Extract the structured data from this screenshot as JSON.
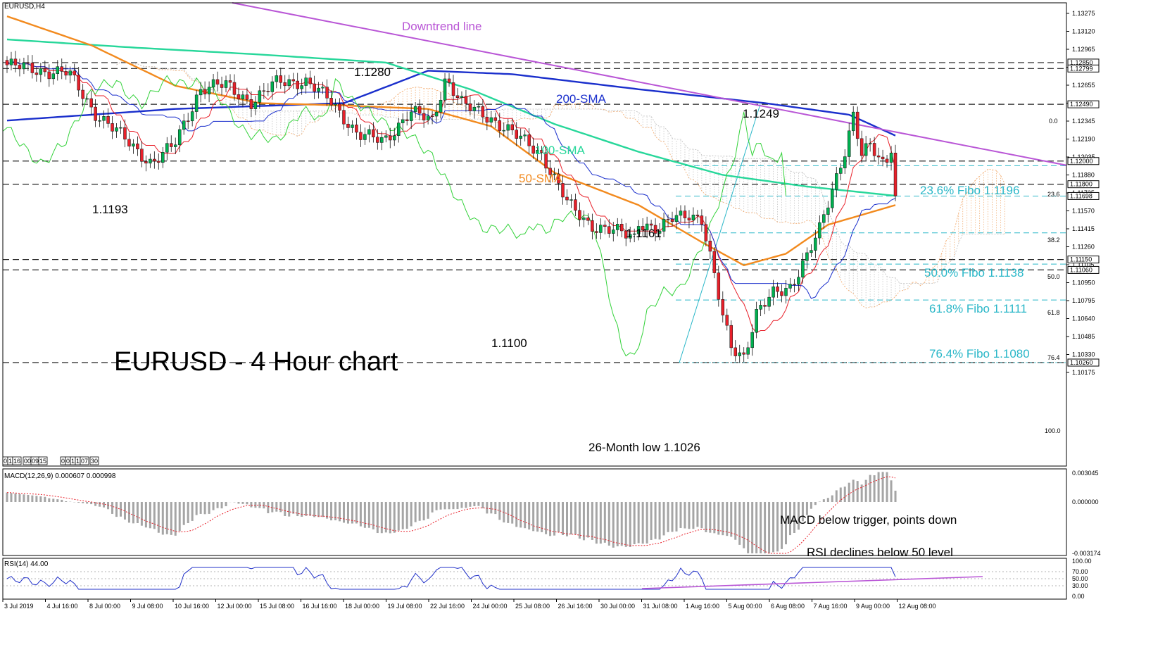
{
  "chart_data": {
    "type": "candlestick",
    "symbol_label": "EURUSD,H4",
    "title": "EURUSD - 4 Hour chart",
    "colors": {
      "bull": "#00b050",
      "bear": "#e8202a",
      "sma200": "#1a2fcc",
      "sma100": "#27d79a",
      "sma50": "#f28a1e",
      "downtrend": "#b956d6",
      "fibo": "#2ab7c8",
      "tenkan": "#e8202a",
      "kijun": "#1a2fcc",
      "chikou": "#33d23a",
      "macd_hist": "#a5a5a5",
      "macd_signal": "#e8202a",
      "rsi": "#2030c8"
    },
    "price_axis": {
      "ticks": [
        "1.13275",
        "1.13120",
        "1.12965",
        "1.12810",
        "1.12655",
        "1.12500",
        "1.12345",
        "1.12190",
        "1.12035",
        "1.11880",
        "1.11725",
        "1.11570",
        "1.11415",
        "1.11260",
        "1.11105",
        "1.10950",
        "1.10795",
        "1.10640",
        "1.10485",
        "1.10330",
        "1.10175"
      ],
      "ylim": [
        1.1005,
        1.1335
      ]
    },
    "level_boxes": [
      "1.12850",
      "1.12799",
      "1.12490",
      "1.12000",
      "1.11800",
      "1.11698",
      "1.11150",
      "1.11060",
      "1.10260"
    ],
    "x_ticks": [
      "3 Jul 2019",
      "4 Jul 16:00",
      "8 Jul 00:00",
      "9 Jul 08:00",
      "10 Jul 16:00",
      "12 Jul 00:00",
      "15 Jul 08:00",
      "16 Jul 16:00",
      "18 Jul 00:00",
      "19 Jul 08:00",
      "22 Jul 16:00",
      "24 Jul 00:00",
      "25 Jul 08:00",
      "26 Jul 16:00",
      "30 Jul 00:00",
      "31 Jul 08:00",
      "1 Aug 16:00",
      "5 Aug 00:00",
      "6 Aug 08:00",
      "7 Aug 16:00",
      "9 Aug 00:00",
      "12 Aug 08:00"
    ],
    "annotations": {
      "downtrend": "Downtrend line",
      "sma200": "200-SMA",
      "sma100": "100-SMA",
      "sma50": "50-SMA",
      "p1": "1.1280",
      "p2": "1.1249",
      "p3": "1.1193",
      "p4": "1.1161",
      "p5": "1.1100",
      "p6": "26-Month low 1.1026",
      "f236": "23.6% Fibo 1.1196",
      "f500": "50.0% Fibo 1.1138",
      "f618": "61.8% Fibo 1.1111",
      "f764": "76.4% Fibo 1.1080",
      "fs0": "0.0",
      "fs236": "23.6",
      "fs382": "38.2",
      "fs500": "50.0",
      "fs618": "61.8",
      "fs764": "76.4",
      "fs100": "100.0"
    },
    "time_boxes": [
      "0",
      "1",
      "16",
      "00",
      "09",
      "15",
      "0",
      "0",
      "1",
      "1",
      "07",
      "30"
    ],
    "macd": {
      "label": "MACD(12,26,9) 0.000607 0.000998",
      "ticks": [
        "0.003045",
        "0.000000",
        "-0.003174"
      ],
      "note": "MACD below trigger, points down"
    },
    "rsi": {
      "label": "RSI(14) 44.00",
      "ticks": [
        "100.00",
        "70.00",
        "50.00",
        "30.00",
        "0.00"
      ],
      "note": "RSI declines below 50 level"
    }
  }
}
